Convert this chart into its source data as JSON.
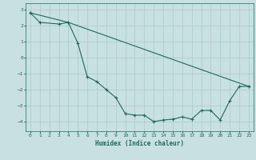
{
  "xlabel": "Humidex (Indice chaleur)",
  "line1_x": [
    0,
    1,
    3,
    4,
    5,
    6,
    7,
    8,
    9,
    10,
    11,
    12,
    13,
    14,
    15,
    16,
    17,
    18,
    19,
    20,
    21,
    22,
    23
  ],
  "line1_y": [
    2.8,
    2.2,
    2.1,
    2.2,
    0.9,
    -1.2,
    -1.5,
    -2.0,
    -2.5,
    -3.5,
    -3.6,
    -3.6,
    -4.0,
    -3.9,
    -3.85,
    -3.7,
    -3.85,
    -3.3,
    -3.3,
    -3.9,
    -2.7,
    -1.8,
    -1.8
  ],
  "line2_x": [
    0,
    4,
    23
  ],
  "line2_y": [
    2.8,
    2.2,
    -1.8
  ],
  "color": "#1a6b5a",
  "bg_color": "#c8e0e0",
  "grid_color": "#aacaca",
  "xlim": [
    -0.5,
    23.5
  ],
  "ylim": [
    -4.6,
    3.4
  ],
  "xticks": [
    0,
    1,
    2,
    3,
    4,
    5,
    6,
    7,
    8,
    9,
    10,
    11,
    12,
    13,
    14,
    15,
    16,
    17,
    18,
    19,
    20,
    21,
    22,
    23
  ],
  "yticks": [
    -4,
    -3,
    -2,
    -1,
    0,
    1,
    2,
    3
  ],
  "linewidth": 0.8,
  "markersize": 2.5
}
